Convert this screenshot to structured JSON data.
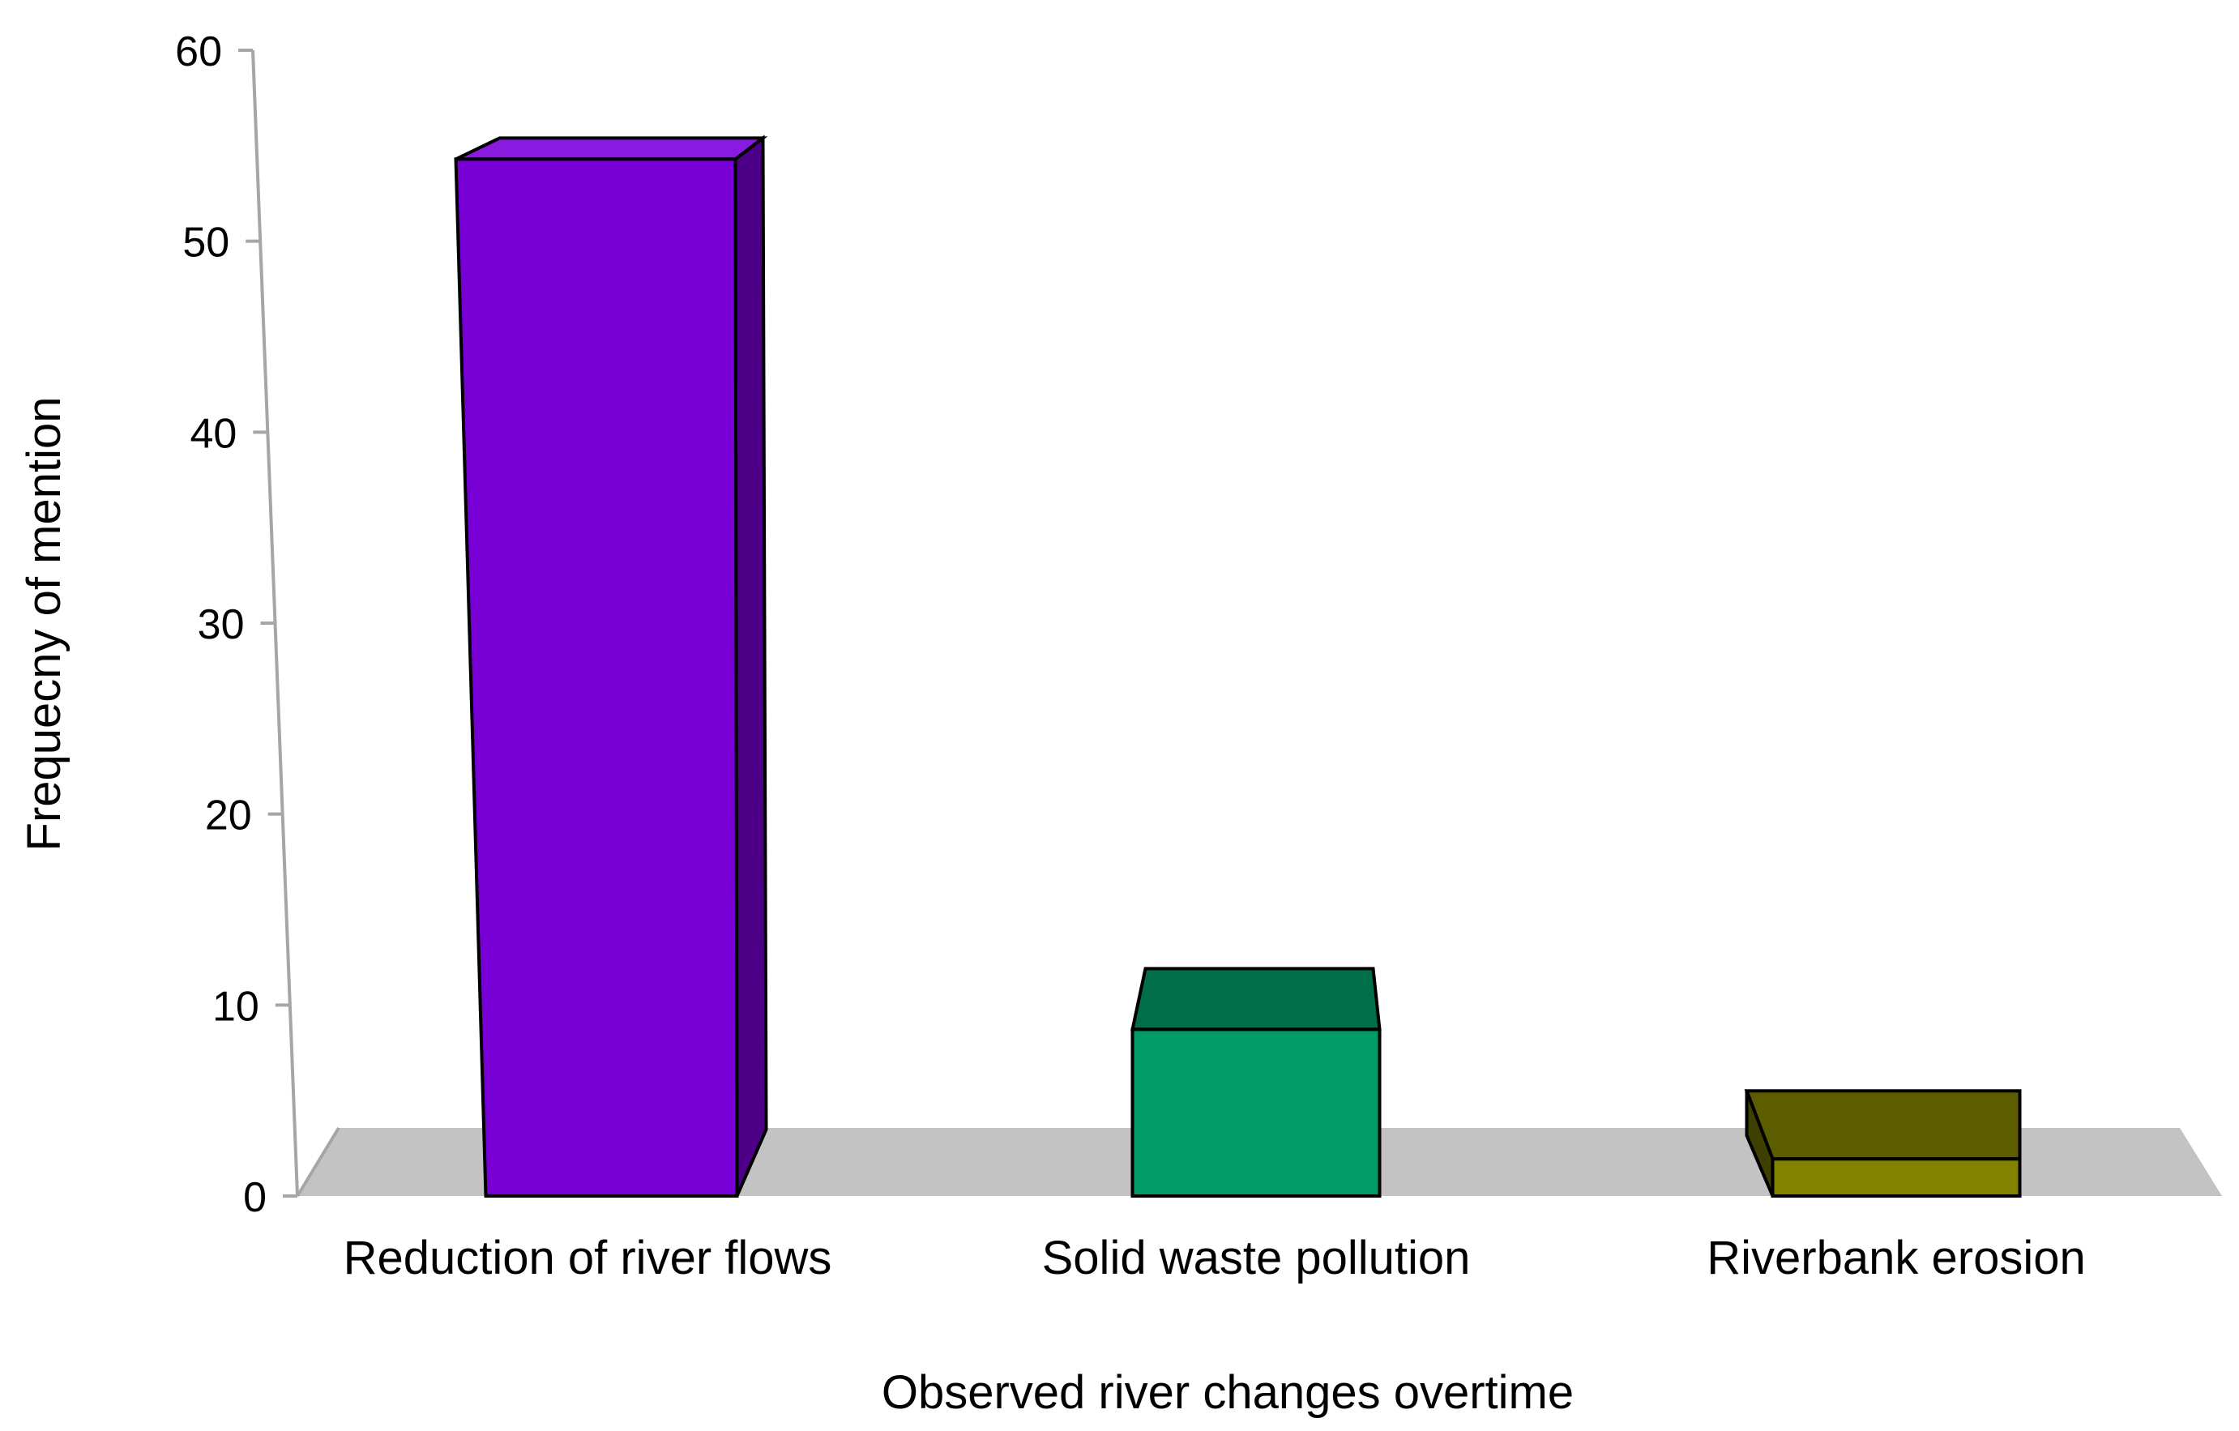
{
  "chart_data": {
    "type": "bar",
    "style": "3d",
    "title": "",
    "xlabel": "Observed river changes overtime",
    "ylabel": "Frequecny of mention",
    "ylim": [
      0,
      60
    ],
    "yticks": [
      0,
      10,
      20,
      30,
      40,
      50,
      60
    ],
    "grid": false,
    "categories": [
      "Reduction of river flows",
      "Solid waste pollution",
      "Riverbank erosion"
    ],
    "values": [
      56,
      9,
      2
    ],
    "colors": [
      "#7800d6",
      "#009b66",
      "#828200"
    ],
    "side_colors": [
      "#4d0087",
      "#006e49",
      "#5c5c00"
    ]
  }
}
